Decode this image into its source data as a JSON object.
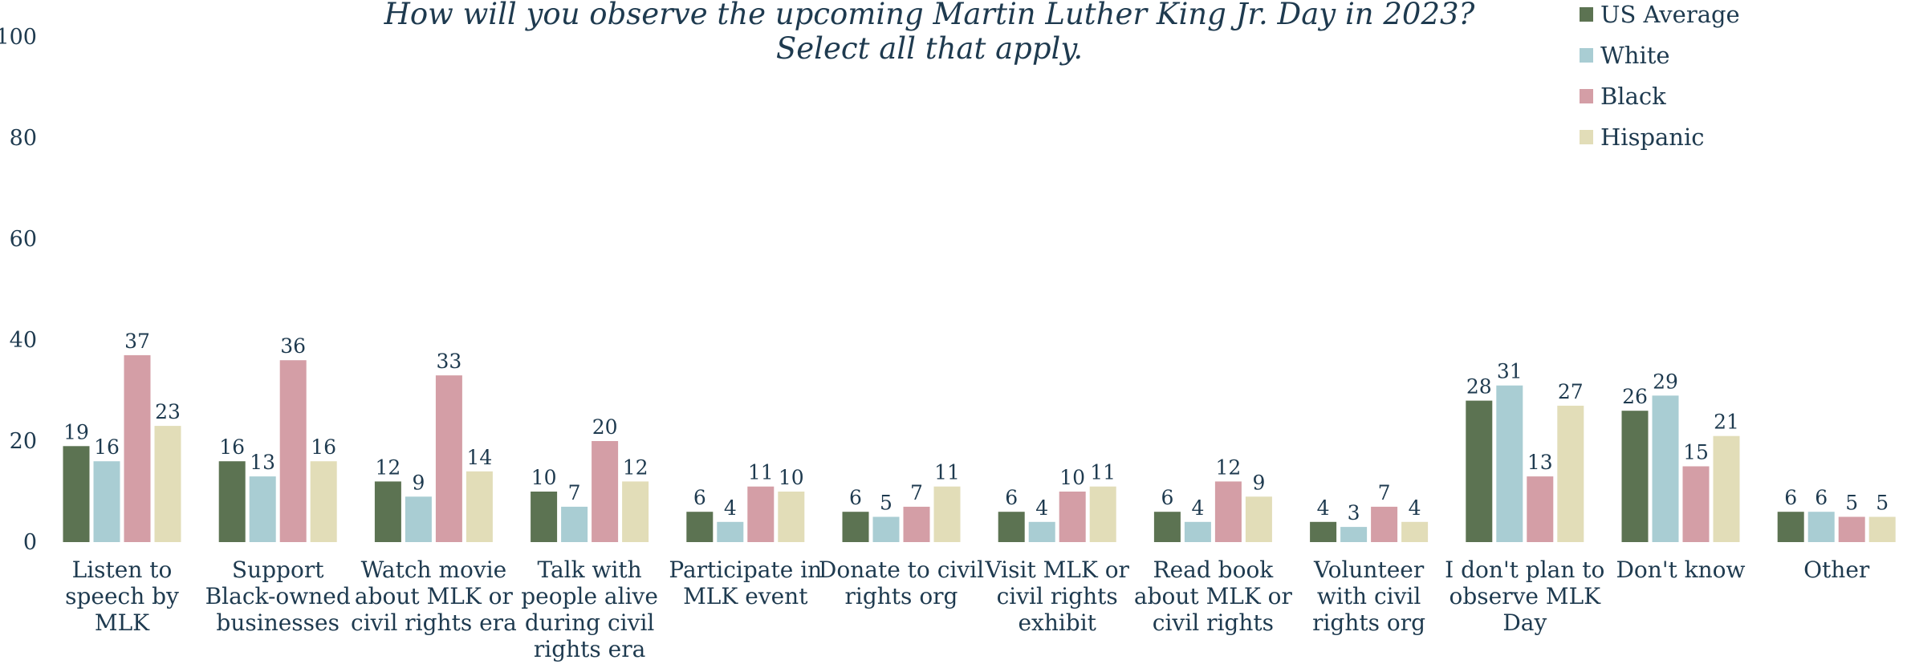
{
  "chart_data": {
    "type": "bar",
    "title": [
      "How will you observe the upcoming Martin Luther King Jr. Day in 2023?",
      "Select all that apply."
    ],
    "ylim": [
      0,
      100
    ],
    "yticks": [
      0,
      20,
      40,
      60,
      80,
      100
    ],
    "grid": false,
    "legend_position": "top-right",
    "categories": [
      [
        "Listen to",
        "speech by",
        "MLK"
      ],
      [
        "Support",
        "Black-owned",
        "businesses"
      ],
      [
        "Watch movie",
        "about MLK or",
        "civil rights era"
      ],
      [
        "Talk with",
        "people alive",
        "during civil",
        "rights era"
      ],
      [
        "Participate in",
        "MLK event"
      ],
      [
        "Donate to civil",
        "rights org"
      ],
      [
        "Visit MLK or",
        "civil rights",
        "exhibit"
      ],
      [
        "Read book",
        "about MLK or",
        "civil rights"
      ],
      [
        "Volunteer",
        "with civil",
        "rights org"
      ],
      [
        "I don't plan to",
        "observe MLK",
        "Day"
      ],
      [
        "Don't know"
      ],
      [
        "Other"
      ]
    ],
    "series": [
      {
        "name": "US Average",
        "color": "#5c7352",
        "values": [
          19,
          16,
          12,
          10,
          6,
          6,
          6,
          6,
          4,
          28,
          26,
          6
        ]
      },
      {
        "name": "White",
        "color": "#a9cdd3",
        "values": [
          16,
          13,
          9,
          7,
          4,
          5,
          4,
          4,
          3,
          31,
          29,
          6
        ]
      },
      {
        "name": "Black",
        "color": "#d49ea6",
        "values": [
          37,
          36,
          33,
          20,
          11,
          7,
          10,
          12,
          7,
          13,
          15,
          5
        ]
      },
      {
        "name": "Hispanic",
        "color": "#e2ddb8",
        "values": [
          23,
          16,
          14,
          12,
          10,
          11,
          11,
          9,
          4,
          27,
          21,
          5
        ]
      }
    ]
  }
}
